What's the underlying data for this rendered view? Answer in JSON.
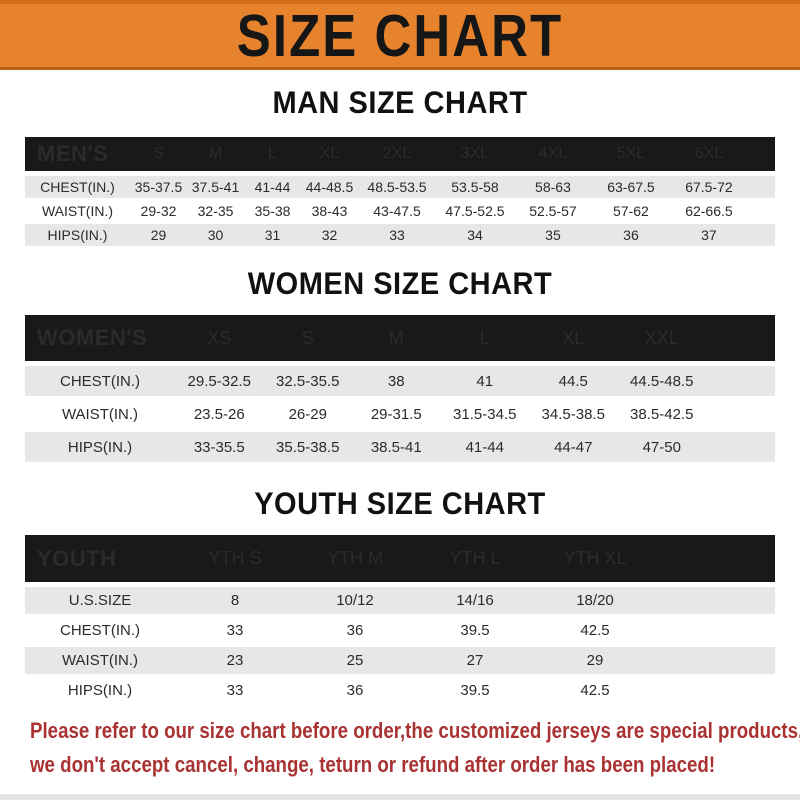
{
  "banner": {
    "title": "SIZE CHART",
    "bg_color": "#E8832D",
    "text_color": "#161616"
  },
  "sections": [
    {
      "title": "MAN SIZE CHART",
      "header_label": "MEN'S",
      "columns": [
        "S",
        "M",
        "L",
        "XL",
        "2XL",
        "3XL",
        "4XL",
        "5XL",
        "6XL"
      ],
      "rows": [
        {
          "label": "CHEST(IN.)",
          "values": [
            "35-37.5",
            "37.5-41",
            "41-44",
            "44-48.5",
            "48.5-53.5",
            "53.5-58",
            "58-63",
            "63-67.5",
            "67.5-72"
          ]
        },
        {
          "label": "WAIST(IN.)",
          "values": [
            "29-32",
            "32-35",
            "35-38",
            "38-43",
            "43-47.5",
            "47.5-52.5",
            "52.5-57",
            "57-62",
            "62-66.5"
          ]
        },
        {
          "label": "HIPS(IN.)",
          "values": [
            "29",
            "30",
            "31",
            "32",
            "33",
            "34",
            "35",
            "36",
            "37"
          ]
        }
      ]
    },
    {
      "title": "WOMEN SIZE CHART",
      "header_label": "WOMEN'S",
      "columns": [
        "XS",
        "S",
        "M",
        "L",
        "XL",
        "XXL"
      ],
      "rows": [
        {
          "label": "CHEST(IN.)",
          "values": [
            "29.5-32.5",
            "32.5-35.5",
            "38",
            "41",
            "44.5",
            "44.5-48.5"
          ]
        },
        {
          "label": "WAIST(IN.)",
          "values": [
            "23.5-26",
            "26-29",
            "29-31.5",
            "31.5-34.5",
            "34.5-38.5",
            "38.5-42.5"
          ]
        },
        {
          "label": "HIPS(IN.)",
          "values": [
            "33-35.5",
            "35.5-38.5",
            "38.5-41",
            "41-44",
            "44-47",
            "47-50"
          ]
        }
      ]
    },
    {
      "title": "YOUTH SIZE CHART",
      "header_label": "YOUTH",
      "columns": [
        "YTH S",
        "YTH M",
        "YTH L",
        "YTH XL"
      ],
      "rows": [
        {
          "label": "U.S.SIZE",
          "values": [
            "8",
            "10/12",
            "14/16",
            "18/20"
          ]
        },
        {
          "label": "CHEST(IN.)",
          "values": [
            "33",
            "36",
            "39.5",
            "42.5"
          ]
        },
        {
          "label": "WAIST(IN.)",
          "values": [
            "23",
            "25",
            "27",
            "29"
          ]
        },
        {
          "label": "HIPS(IN.)",
          "values": [
            "33",
            "36",
            "39.5",
            "42.5"
          ]
        }
      ]
    }
  ],
  "table_colors": {
    "header_bar": "#191919",
    "row_alt": "#E7E7E7"
  },
  "disclaimer": {
    "color": "#A93232",
    "lines": [
      "Please refer to our size chart before order,the customized jerseys are special products,",
      "we don't accept cancel, change, teturn or refund after order has been placed!"
    ]
  }
}
